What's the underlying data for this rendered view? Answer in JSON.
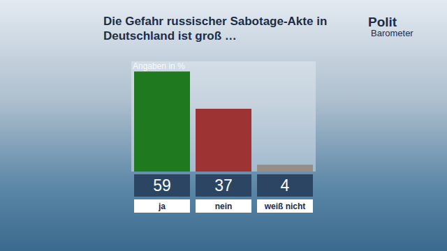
{
  "chart_data": {
    "type": "bar",
    "title": "Die Gefahr russischer Sabotage-Akte in Deutschland ist groß …",
    "ylabel": "Angaben in %",
    "annotations": [
      "Polit",
      "Barometer"
    ],
    "categories": [
      "ja",
      "nein",
      "weiß nicht"
    ],
    "values": [
      59,
      37,
      4
    ],
    "colors": [
      "#1f7a1f",
      "#9e3333",
      "#968d86"
    ],
    "ylim": [
      0,
      65
    ],
    "data_labels": true,
    "tick_labels": "x"
  }
}
